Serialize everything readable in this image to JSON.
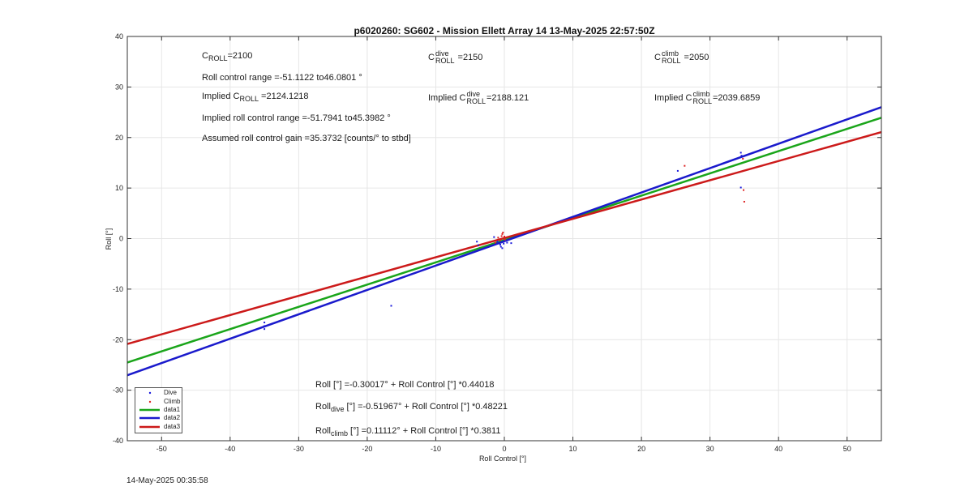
{
  "title": "p6020260: SG602 - Mission Ellett Array 14 13-May-2025 22:57:50Z",
  "timestamp": "14-May-2025 00:35:58",
  "colors": {
    "dive": "#1a1adb",
    "climb": "#dd2222",
    "data1": "#1aa51a",
    "data2": "#1a1acc",
    "data3": "#cc1a1a",
    "grid": "#e6e6e6",
    "axis": "#333333"
  },
  "annotations": {
    "c_roll": {
      "base": "C",
      "sub": "ROLL",
      "value": "=2100"
    },
    "roll_range": "Roll control range =-51.1122 to46.0801 °",
    "implied_c_roll": {
      "prefix": "Implied C",
      "sub": "ROLL",
      "value": " =2124.1218"
    },
    "implied_range": "Implied roll control range =-51.7941 to45.3982 °",
    "gain": "Assumed roll control gain =35.3732 [counts/° to stbd]",
    "c_dive": {
      "base": "C",
      "sup": "dive",
      "sub": "ROLL",
      "value": " =2150"
    },
    "implied_dive": {
      "prefix": "Implied C",
      "sup": "dive",
      "sub": "ROLL",
      "value": "=2188.121"
    },
    "c_climb": {
      "base": "C",
      "sup": "climb",
      "sub": "ROLL",
      "value": " =2050"
    },
    "implied_climb": {
      "prefix": "Implied C",
      "sup": "climb",
      "sub": "ROLL",
      "value": "=2039.6859"
    },
    "eq_all": "Roll [°] =-0.30017° + Roll Control [°] *0.44018",
    "eq_dive": {
      "base": "Roll",
      "sub": "dive",
      "rest": " [°] =-0.51967° + Roll Control [°] *0.48221"
    },
    "eq_climb": {
      "base": "Roll",
      "sub": "climb",
      "rest": " [°] =0.11112° + Roll Control [°] *0.3811"
    }
  },
  "chart_data": {
    "type": "scatter",
    "title": "p6020260: SG602 - Mission Ellett Array 14 13-May-2025 22:57:50Z",
    "xlabel": "Roll Control [°]",
    "ylabel": "Roll [°]",
    "xlim": [
      -55,
      55
    ],
    "ylim": [
      -40,
      40
    ],
    "xticks": [
      -50,
      -40,
      -30,
      -20,
      -10,
      0,
      10,
      20,
      30,
      40,
      50
    ],
    "yticks": [
      -40,
      -30,
      -20,
      -10,
      0,
      10,
      20,
      30,
      40
    ],
    "grid": true,
    "legend_position": "bottom-left",
    "points": [
      {
        "series": "Dive",
        "x": -35,
        "y": -16.6
      },
      {
        "series": "Dive",
        "x": -35,
        "y": -17.3
      },
      {
        "series": "Dive",
        "x": -35,
        "y": -17.9
      },
      {
        "series": "Dive",
        "x": -16.5,
        "y": -13.3
      },
      {
        "series": "Dive",
        "x": -4,
        "y": -0.6
      },
      {
        "series": "Dive",
        "x": -3.8,
        "y": -1.3
      },
      {
        "series": "Dive",
        "x": -1.5,
        "y": 0.3
      },
      {
        "series": "Dive",
        "x": -1,
        "y": -0.6
      },
      {
        "series": "Dive",
        "x": -0.6,
        "y": -1.2
      },
      {
        "series": "Dive",
        "x": -0.5,
        "y": -1.6
      },
      {
        "series": "Dive",
        "x": -0.3,
        "y": -1.9
      },
      {
        "series": "Dive",
        "x": -0.1,
        "y": -1
      },
      {
        "series": "Dive",
        "x": 0.2,
        "y": -0.4
      },
      {
        "series": "Dive",
        "x": 0.4,
        "y": -0.8
      },
      {
        "series": "Dive",
        "x": 1,
        "y": -0.9
      },
      {
        "series": "Dive",
        "x": 25.3,
        "y": 13.4
      },
      {
        "series": "Dive",
        "x": 34.5,
        "y": 17
      },
      {
        "series": "Dive",
        "x": 34.6,
        "y": 16.4
      },
      {
        "series": "Dive",
        "x": 34.5,
        "y": 10.1
      },
      {
        "series": "Climb",
        "x": -1.3,
        "y": -0.8
      },
      {
        "series": "Climb",
        "x": -0.9,
        "y": 0.2
      },
      {
        "series": "Climb",
        "x": -0.6,
        "y": -0.3
      },
      {
        "series": "Climb",
        "x": -0.4,
        "y": 0.5
      },
      {
        "series": "Climb",
        "x": -0.3,
        "y": 0.9
      },
      {
        "series": "Climb",
        "x": -0.2,
        "y": 1.2
      },
      {
        "series": "Climb",
        "x": 0,
        "y": 0.4
      },
      {
        "series": "Climb",
        "x": 0.1,
        "y": -0.2
      },
      {
        "series": "Climb",
        "x": 26.3,
        "y": 14.4
      },
      {
        "series": "Climb",
        "x": 34.8,
        "y": 15.8
      },
      {
        "series": "Climb",
        "x": 34.9,
        "y": 9.6
      },
      {
        "series": "Climb",
        "x": 35,
        "y": 7.3
      }
    ],
    "lines": [
      {
        "name": "data1",
        "intercept": -0.30017,
        "slope": 0.44018
      },
      {
        "name": "data2",
        "intercept": -0.51967,
        "slope": 0.48221
      },
      {
        "name": "data3",
        "intercept": 0.11112,
        "slope": 0.3811
      }
    ],
    "legend": [
      "Dive",
      "Climb",
      "data1",
      "data2",
      "data3"
    ]
  }
}
